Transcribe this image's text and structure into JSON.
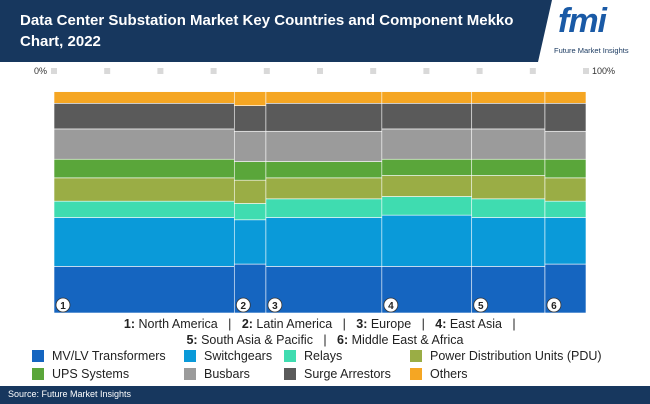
{
  "header": {
    "title": "Data Center Substation Market Key Countries and Component Mekko Chart, 2022",
    "logo_mark": "fmi",
    "logo_subtitle": "Future Market Insights"
  },
  "axis": {
    "left_label": "0%",
    "right_label": "100%"
  },
  "chart_data": {
    "type": "mekko",
    "title": "Data Center Substation Market Key Countries and Component Mekko Chart, 2022",
    "columns": [
      {
        "id": "1",
        "name": "North America",
        "width": 32.5
      },
      {
        "id": "2",
        "name": "Latin America",
        "width": 5.7
      },
      {
        "id": "3",
        "name": "Europe",
        "width": 20.9
      },
      {
        "id": "4",
        "name": "East Asia",
        "width": 16.2
      },
      {
        "id": "5",
        "name": "South Asia & Pacific",
        "width": 13.2
      },
      {
        "id": "6",
        "name": "Middle East & Africa",
        "width": 7.4
      }
    ],
    "series": [
      {
        "name": "MV/LV Transformers",
        "color": "#1565c0",
        "values": [
          20,
          21,
          20,
          20,
          20,
          21
        ]
      },
      {
        "name": "Switchgears",
        "color": "#0a9ad9",
        "values": [
          21,
          19,
          21,
          22,
          21,
          20
        ]
      },
      {
        "name": "Relays",
        "color": "#3fdcb0",
        "values": [
          7,
          7,
          8,
          8,
          8,
          7
        ]
      },
      {
        "name": "Power Distribution Units (PDU)",
        "color": "#9aad45",
        "values": [
          10,
          10,
          9,
          9,
          10,
          10
        ]
      },
      {
        "name": "UPS Systems",
        "color": "#5aa63a",
        "values": [
          8,
          8,
          7,
          7,
          7,
          8
        ]
      },
      {
        "name": "Busbars",
        "color": "#9b9b9b",
        "values": [
          13,
          13,
          13,
          13,
          13,
          12
        ]
      },
      {
        "name": "Surge Arrestors",
        "color": "#5a5a5a",
        "values": [
          11,
          11,
          12,
          11,
          11,
          12
        ]
      },
      {
        "name": "Others",
        "color": "#f5a623",
        "values": [
          5,
          6,
          5,
          5,
          5,
          5
        ]
      }
    ],
    "ylim": [
      0,
      100
    ],
    "grid": false,
    "legend_position": "bottom"
  },
  "countries_line1": [
    {
      "num": "1:",
      "name": "North America"
    },
    {
      "num": "2:",
      "name": "Latin America"
    },
    {
      "num": "3:",
      "name": "Europe"
    },
    {
      "num": "4:",
      "name": "East Asia"
    }
  ],
  "countries_line2": [
    {
      "num": "5:",
      "name": "South Asia & Pacific"
    },
    {
      "num": "6:",
      "name": "Middle East & Africa"
    }
  ],
  "footer": {
    "source": "Source: Future Market Insights"
  }
}
